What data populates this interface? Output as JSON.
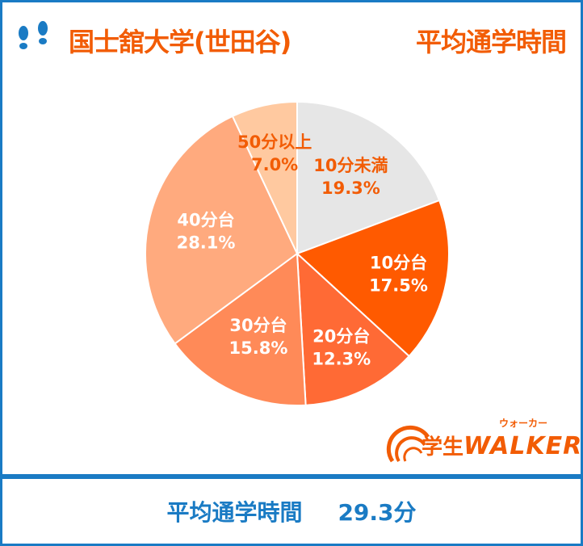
{
  "header": {
    "title_left": "国士舘大学(世田谷)",
    "title_right": "平均通学時間",
    "icon": "footprints-icon"
  },
  "chart_data": {
    "type": "pie",
    "slices": [
      {
        "label": "10分未満",
        "value": 19.3,
        "value_text": "19.3%",
        "color": "#e6e6e6",
        "label_color": "#f25c05"
      },
      {
        "label": "10分台",
        "value": 17.5,
        "value_text": "17.5%",
        "color": "#ff5a00",
        "label_color": "#ffffff"
      },
      {
        "label": "20分台",
        "value": 12.3,
        "value_text": "12.3%",
        "color": "#ff6a35",
        "label_color": "#ffffff"
      },
      {
        "label": "30分台",
        "value": 15.8,
        "value_text": "15.8%",
        "color": "#ff8a58",
        "label_color": "#ffffff"
      },
      {
        "label": "40分台",
        "value": 28.1,
        "value_text": "28.1%",
        "color": "#ffaa7e",
        "label_color": "#ffffff"
      },
      {
        "label": "50分以上",
        "value": 7.0,
        "value_text": "7.0%",
        "color": "#ffc9a0",
        "label_color": "#f25c05"
      }
    ],
    "start_angle_deg": 0,
    "direction": "clockwise"
  },
  "logo": {
    "text_ja": "学生",
    "text_en": "WALKER",
    "kana": "ウォーカー"
  },
  "footer": {
    "label": "平均通学時間",
    "value": "29.3分"
  }
}
